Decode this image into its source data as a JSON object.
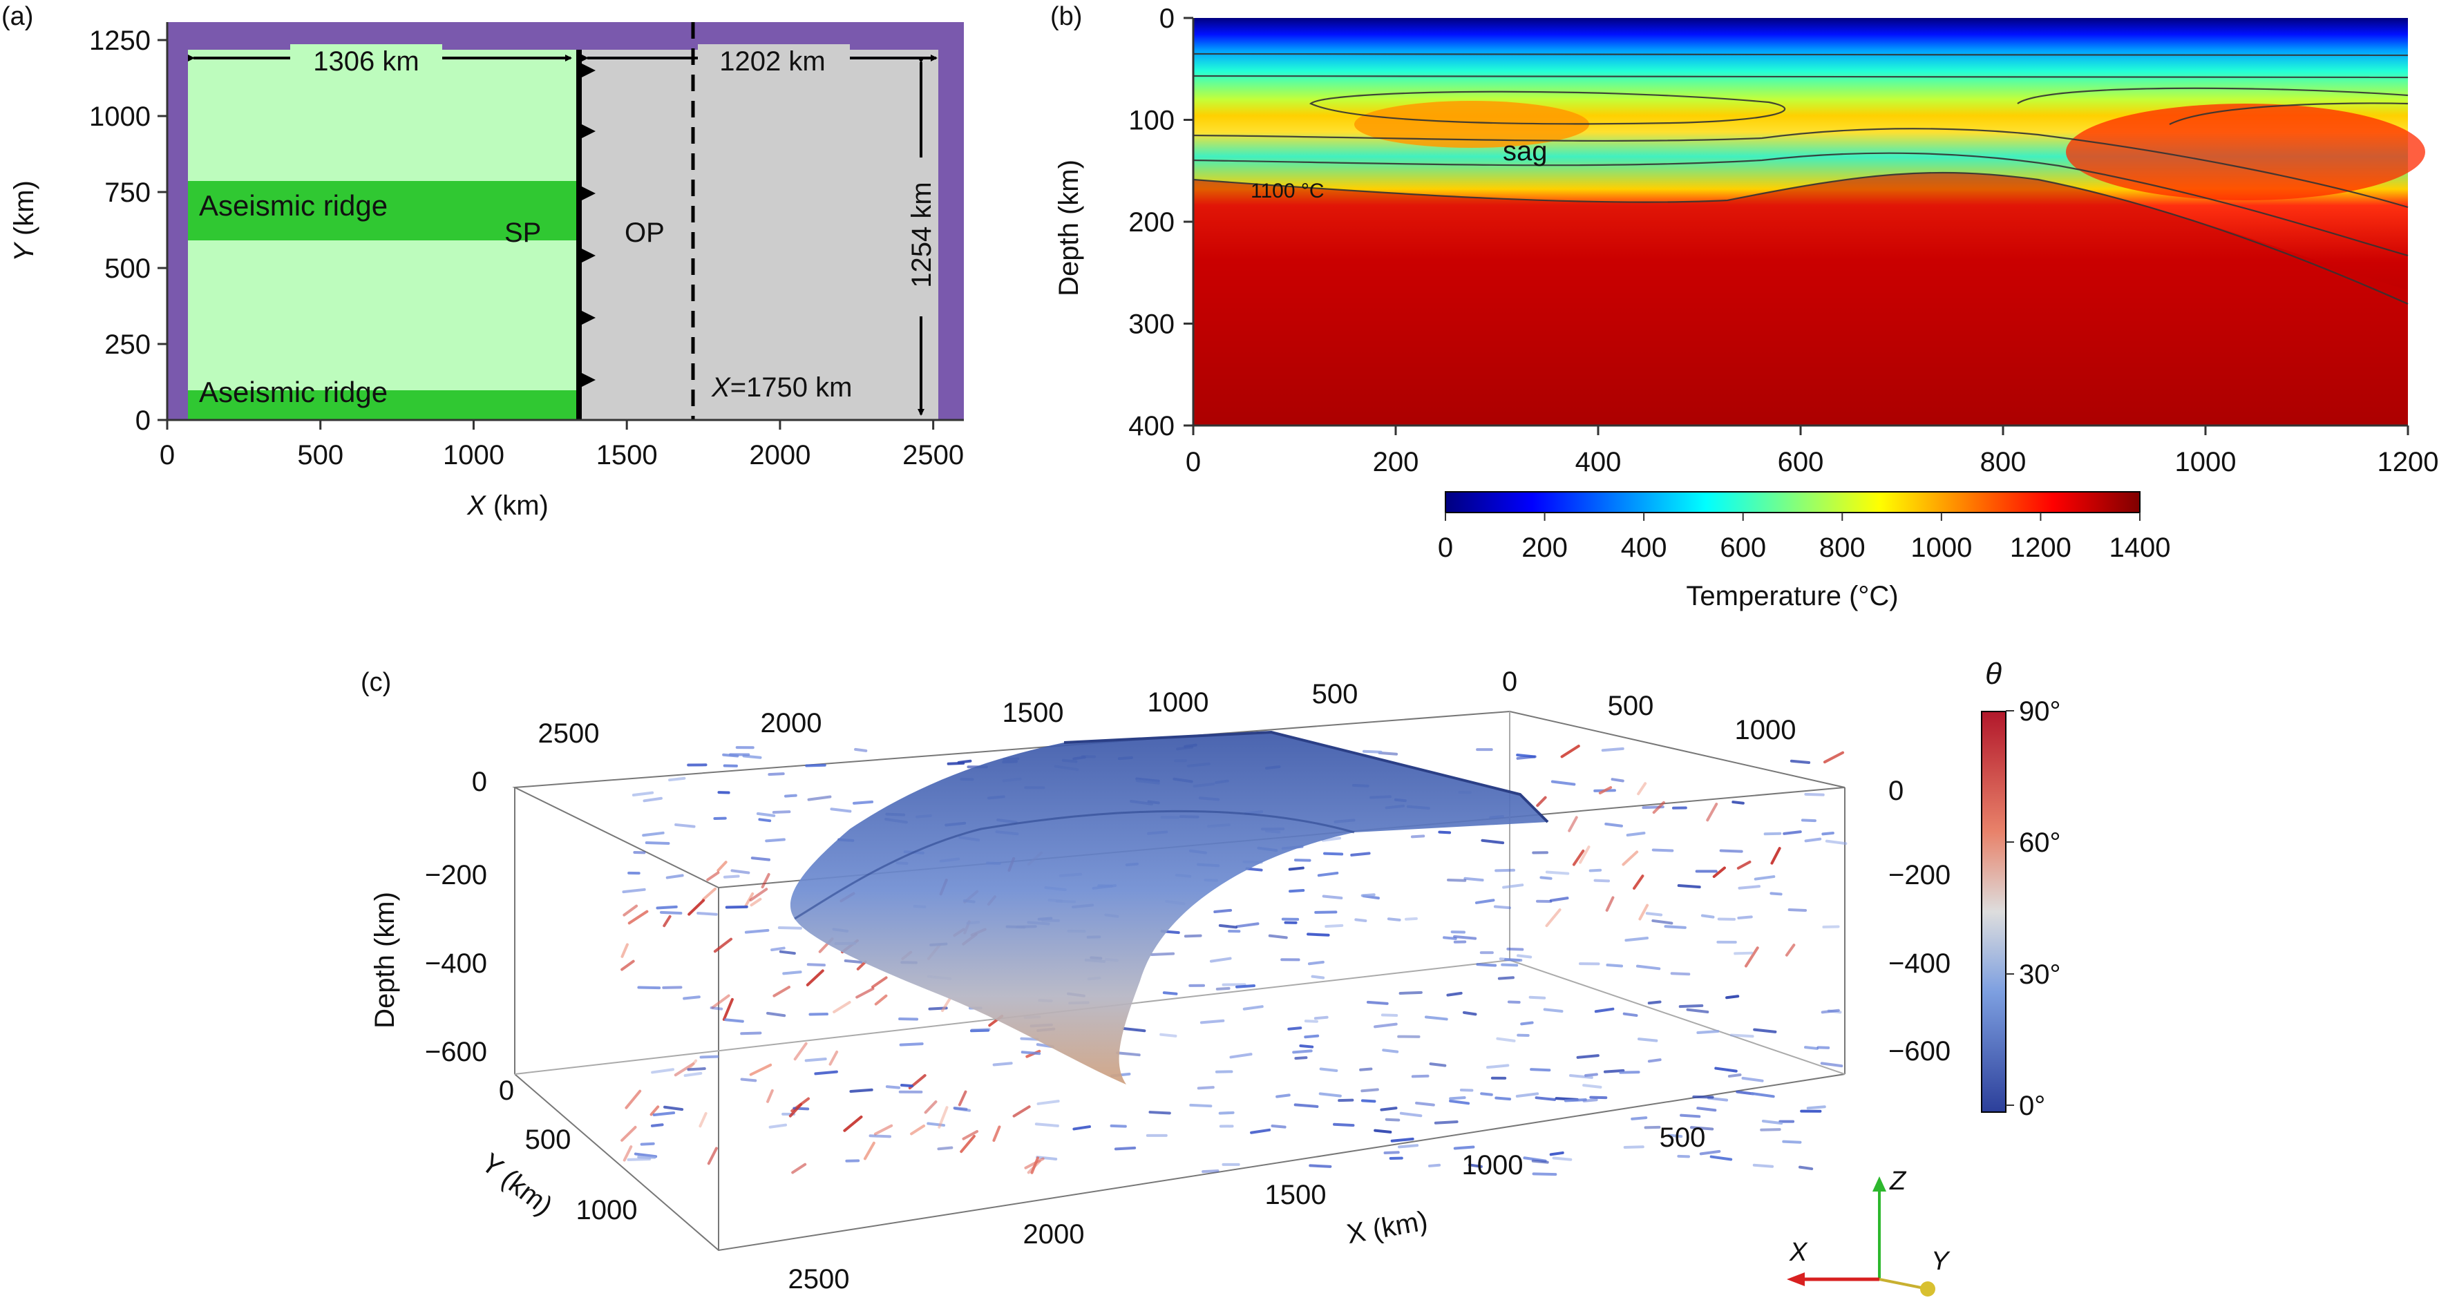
{
  "panel_a": {
    "label": "(a)",
    "x_ticks": [
      "0",
      "500",
      "1000",
      "1500",
      "2000",
      "2500"
    ],
    "y_ticks": [
      "0",
      "250",
      "500",
      "750",
      "1000",
      "1250"
    ],
    "xlabel_var": "X",
    "xlabel_unit": " (km)",
    "ylabel_var": "Y",
    "ylabel_unit": " (km)",
    "ridge_top": "Aseismic ridge",
    "ridge_bottom": "Aseismic ridge",
    "sp": "SP",
    "op": "OP",
    "dim_left": "1306 km",
    "dim_right": "1202 km",
    "dim_vertical": "1254 km",
    "x_marker_var": "X",
    "x_marker_val": "=1750 km",
    "colors": {
      "frame": "#7a59ad",
      "sp_plate": "#bdfcbd",
      "ridge": "#30c832",
      "op_plate": "#cdcdcd"
    }
  },
  "panel_b": {
    "label": "(b)",
    "x_ticks": [
      "0",
      "200",
      "400",
      "600",
      "800",
      "1000",
      "1200"
    ],
    "y_ticks": [
      "0",
      "100",
      "200",
      "300",
      "400"
    ],
    "ylabel": "Depth (km)",
    "annotation_sag": "sag",
    "annotation_isotherm": "1100 °C",
    "colorbar_ticks": [
      "0",
      "200",
      "400",
      "600",
      "800",
      "1000",
      "1200",
      "1400"
    ],
    "colorbar_label": "Temperature (°C)"
  },
  "panel_c": {
    "label": "(c)",
    "top_x_ticks": [
      "2500",
      "2000",
      "1500",
      "1000",
      "500",
      "0"
    ],
    "top_y_ticks": [
      "500",
      "1000"
    ],
    "left_depth_ticks": [
      "0",
      "−200",
      "−400",
      "−600"
    ],
    "right_depth_ticks": [
      "0",
      "−200",
      "−400",
      "−600"
    ],
    "bottom_y_ticks": [
      "0",
      "500",
      "1000",
      "2500"
    ],
    "bottom_x_ticks": [
      "500",
      "1000",
      "1500",
      "2000"
    ],
    "depth_label": "Depth (km)",
    "ylabel": "Y (km)",
    "xlabel": "X (km)",
    "colorbar_title": "θ",
    "colorbar_ticks": [
      "90°",
      "60°",
      "30°",
      "0°"
    ],
    "axes_triad": {
      "x": "X",
      "y": "Y",
      "z": "Z"
    }
  }
}
